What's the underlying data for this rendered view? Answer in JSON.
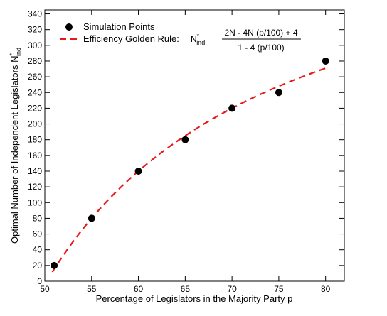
{
  "chart_data": {
    "type": "scatter",
    "xlabel": "Percentage of Legislators in the Majority Party p",
    "ylabel_main": "Optimal Number of Independent Legislators N",
    "ylabel_sup": "*",
    "ylabel_sub": "ind",
    "xlim": [
      50,
      82
    ],
    "ylim": [
      0,
      345
    ],
    "x_ticks": [
      50,
      55,
      60,
      65,
      70,
      75,
      80
    ],
    "y_ticks": [
      0,
      20,
      40,
      60,
      80,
      100,
      120,
      140,
      160,
      180,
      200,
      220,
      240,
      260,
      280,
      300,
      320,
      340
    ],
    "grid": false,
    "legend_position": "top-left",
    "series": [
      {
        "name": "Simulation Points",
        "kind": "points",
        "color": "#000000",
        "x": [
          51,
          55,
          60,
          65,
          70,
          75,
          80
        ],
        "y": [
          20,
          80,
          140,
          180,
          220,
          240,
          280
        ]
      },
      {
        "name": "Efficiency Golden Rule:",
        "kind": "curve",
        "color": "#e8191a",
        "N": 500,
        "x_range": [
          50.8,
          80
        ]
      }
    ],
    "formula": {
      "lhs_main": "N",
      "lhs_sup": "*",
      "lhs_sub": "ind",
      "equals": "=",
      "numerator": "2N - 4N (p/100) + 4",
      "denominator": "1 - 4 (p/100)"
    }
  }
}
